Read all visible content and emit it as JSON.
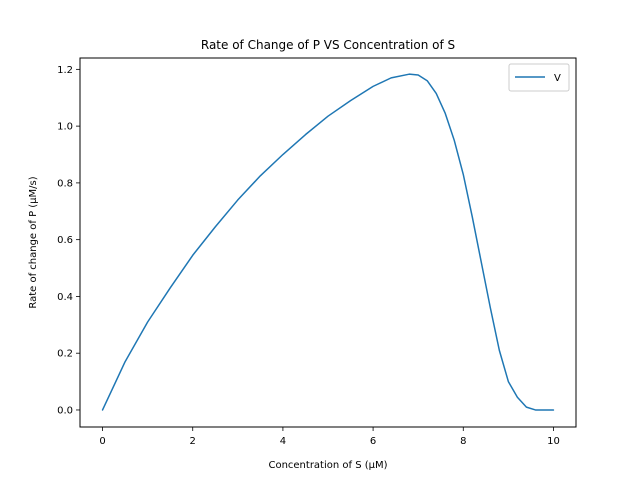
{
  "chart_data": {
    "type": "line",
    "title": "Rate of Change of P VS Concentration of S",
    "xlabel": "Concentration of S (μM)",
    "ylabel": "Rate of change of P (μM/s)",
    "xlim": [
      -0.5,
      10.5
    ],
    "ylim": [
      -0.06,
      1.24
    ],
    "xticks": [
      0,
      2,
      4,
      6,
      8,
      10
    ],
    "xtick_labels": [
      "0",
      "2",
      "4",
      "6",
      "8",
      "10"
    ],
    "yticks": [
      0.0,
      0.2,
      0.4,
      0.6,
      0.8,
      1.0,
      1.2
    ],
    "ytick_labels": [
      "0.0",
      "0.2",
      "0.4",
      "0.6",
      "0.8",
      "1.0",
      "1.2"
    ],
    "grid": false,
    "legend": {
      "position": "top-right",
      "entries": [
        "V"
      ]
    },
    "series": [
      {
        "name": "V",
        "color": "#1f77b4",
        "x": [
          0,
          0.5,
          1,
          1.5,
          2,
          2.5,
          3,
          3.5,
          4,
          4.5,
          5,
          5.5,
          6,
          6.4,
          6.8,
          7.0,
          7.2,
          7.4,
          7.6,
          7.8,
          8.0,
          8.2,
          8.4,
          8.6,
          8.8,
          9.0,
          9.2,
          9.4,
          9.6,
          9.8,
          10.0
        ],
        "y": [
          0.0,
          0.17,
          0.31,
          0.43,
          0.545,
          0.645,
          0.74,
          0.825,
          0.9,
          0.97,
          1.035,
          1.09,
          1.14,
          1.17,
          1.183,
          1.18,
          1.16,
          1.115,
          1.045,
          0.95,
          0.83,
          0.68,
          0.52,
          0.36,
          0.21,
          0.1,
          0.045,
          0.01,
          0.0,
          0.0,
          0.0
        ]
      }
    ]
  }
}
